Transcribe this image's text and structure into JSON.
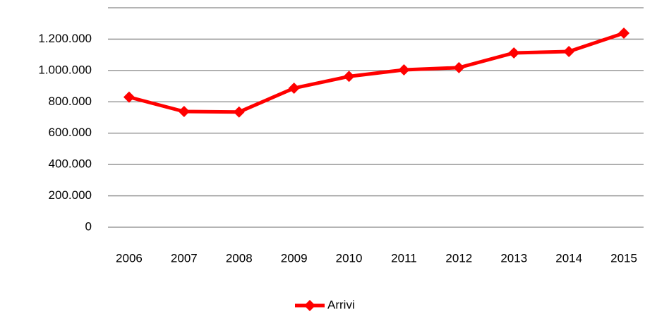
{
  "chart_data": {
    "type": "line",
    "categories": [
      "2006",
      "2007",
      "2008",
      "2009",
      "2010",
      "2011",
      "2012",
      "2013",
      "2014",
      "2015"
    ],
    "series": [
      {
        "name": "Arrivi",
        "color": "#ff0000",
        "values": [
          830000,
          738000,
          735000,
          887000,
          962000,
          1004000,
          1018000,
          1112000,
          1121000,
          1238000
        ]
      }
    ],
    "ylim": [
      0,
      1400000
    ],
    "yticks": [
      0,
      {
        "value": 200000,
        "label": "200.000"
      },
      {
        "value": 400000,
        "label": "400.000"
      },
      {
        "value": 600000,
        "label": "600.000"
      },
      {
        "value": 800000,
        "label": "800.000"
      },
      {
        "value": 1000000,
        "label": "1.000.000"
      },
      {
        "value": 1200000,
        "label": "1.200.000"
      }
    ],
    "grid": true,
    "legend": "bottom"
  }
}
